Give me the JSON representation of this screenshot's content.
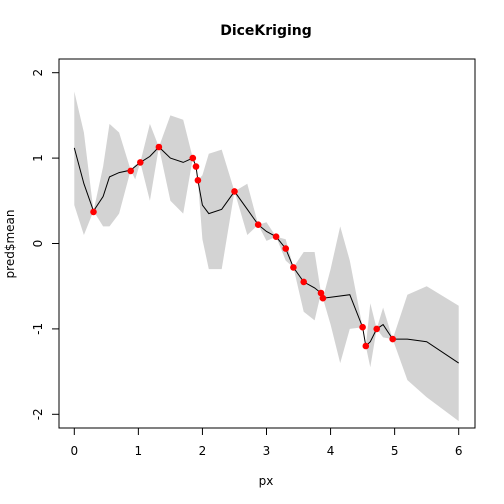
{
  "chart_data": {
    "type": "line",
    "title": "DiceKriging",
    "xlabel": "px",
    "ylabel": "pred$mean",
    "xlim": [
      0,
      6
    ],
    "ylim": [
      -2,
      2
    ],
    "x_ticks": [
      0,
      1,
      2,
      3,
      4,
      5,
      6
    ],
    "y_ticks": [
      -2,
      -1,
      0,
      1,
      2
    ],
    "x_tick_labels": [
      "0",
      "1",
      "2",
      "3",
      "4",
      "5",
      "6"
    ],
    "y_tick_labels": [
      "-2",
      "-1",
      "0",
      "1",
      "2"
    ],
    "grid": false,
    "colors": {
      "band": "#d3d3d3",
      "mean_line": "#000000",
      "points": "#ff0000"
    },
    "mean_curve": {
      "x": [
        0.0,
        0.15,
        0.3,
        0.45,
        0.55,
        0.7,
        0.88,
        1.03,
        1.18,
        1.32,
        1.5,
        1.7,
        1.85,
        1.9,
        1.93,
        2.0,
        2.1,
        2.3,
        2.5,
        2.7,
        2.87,
        3.0,
        3.15,
        3.3,
        3.42,
        3.58,
        3.75,
        3.85,
        3.88,
        4.0,
        4.3,
        4.5,
        4.55,
        4.62,
        4.72,
        4.82,
        4.97,
        5.2,
        5.5,
        6.0
      ],
      "y": [
        1.12,
        0.7,
        0.38,
        0.55,
        0.78,
        0.83,
        0.86,
        0.95,
        1.02,
        1.13,
        1.0,
        0.95,
        1.0,
        0.9,
        0.74,
        0.45,
        0.35,
        0.4,
        0.61,
        0.4,
        0.22,
        0.14,
        0.08,
        -0.06,
        -0.28,
        -0.45,
        -0.52,
        -0.58,
        -0.64,
        -0.63,
        -0.6,
        -0.98,
        -1.2,
        -1.15,
        -1.0,
        -0.95,
        -1.12,
        -1.12,
        -1.15,
        -1.4
      ]
    },
    "confidence_band": {
      "x": [
        0.0,
        0.15,
        0.3,
        0.45,
        0.55,
        0.7,
        0.88,
        0.95,
        1.03,
        1.18,
        1.32,
        1.5,
        1.7,
        1.85,
        1.9,
        1.93,
        2.0,
        2.1,
        2.3,
        2.5,
        2.7,
        2.87,
        3.0,
        3.15,
        3.3,
        3.42,
        3.58,
        3.75,
        3.85,
        3.88,
        4.0,
        4.15,
        4.3,
        4.5,
        4.55,
        4.62,
        4.72,
        4.82,
        4.97,
        5.2,
        5.5,
        6.0
      ],
      "upper": [
        1.78,
        1.3,
        0.38,
        0.9,
        1.4,
        1.3,
        0.86,
        0.92,
        0.95,
        1.4,
        1.13,
        1.5,
        1.45,
        1.0,
        0.9,
        0.74,
        0.8,
        1.05,
        1.1,
        0.61,
        0.7,
        0.22,
        0.25,
        0.08,
        0.05,
        -0.28,
        -0.1,
        -0.1,
        -0.58,
        -0.64,
        -0.3,
        0.2,
        -0.2,
        -0.98,
        -1.2,
        -0.7,
        -1.0,
        -0.75,
        -1.12,
        -0.6,
        -0.5,
        -0.73
      ],
      "lower": [
        0.45,
        0.1,
        0.38,
        0.2,
        0.2,
        0.35,
        0.86,
        0.75,
        0.95,
        0.5,
        1.13,
        0.5,
        0.35,
        1.0,
        0.9,
        0.74,
        0.05,
        -0.3,
        -0.3,
        0.61,
        0.1,
        0.22,
        0.03,
        0.08,
        -0.2,
        -0.28,
        -0.8,
        -0.9,
        -0.58,
        -0.64,
        -0.95,
        -1.4,
        -1.0,
        -0.98,
        -1.2,
        -1.45,
        -1.0,
        -1.1,
        -1.12,
        -1.6,
        -1.8,
        -2.08
      ]
    },
    "observations": {
      "x": [
        0.3,
        0.88,
        1.03,
        1.32,
        1.85,
        1.9,
        1.93,
        2.5,
        2.87,
        3.15,
        3.3,
        3.42,
        3.58,
        3.85,
        3.88,
        4.5,
        4.55,
        4.72,
        4.97
      ],
      "y": [
        0.37,
        0.85,
        0.95,
        1.13,
        1.0,
        0.9,
        0.74,
        0.61,
        0.22,
        0.08,
        -0.06,
        -0.28,
        -0.45,
        -0.58,
        -0.64,
        -0.98,
        -1.2,
        -1.0,
        -1.12
      ]
    }
  }
}
